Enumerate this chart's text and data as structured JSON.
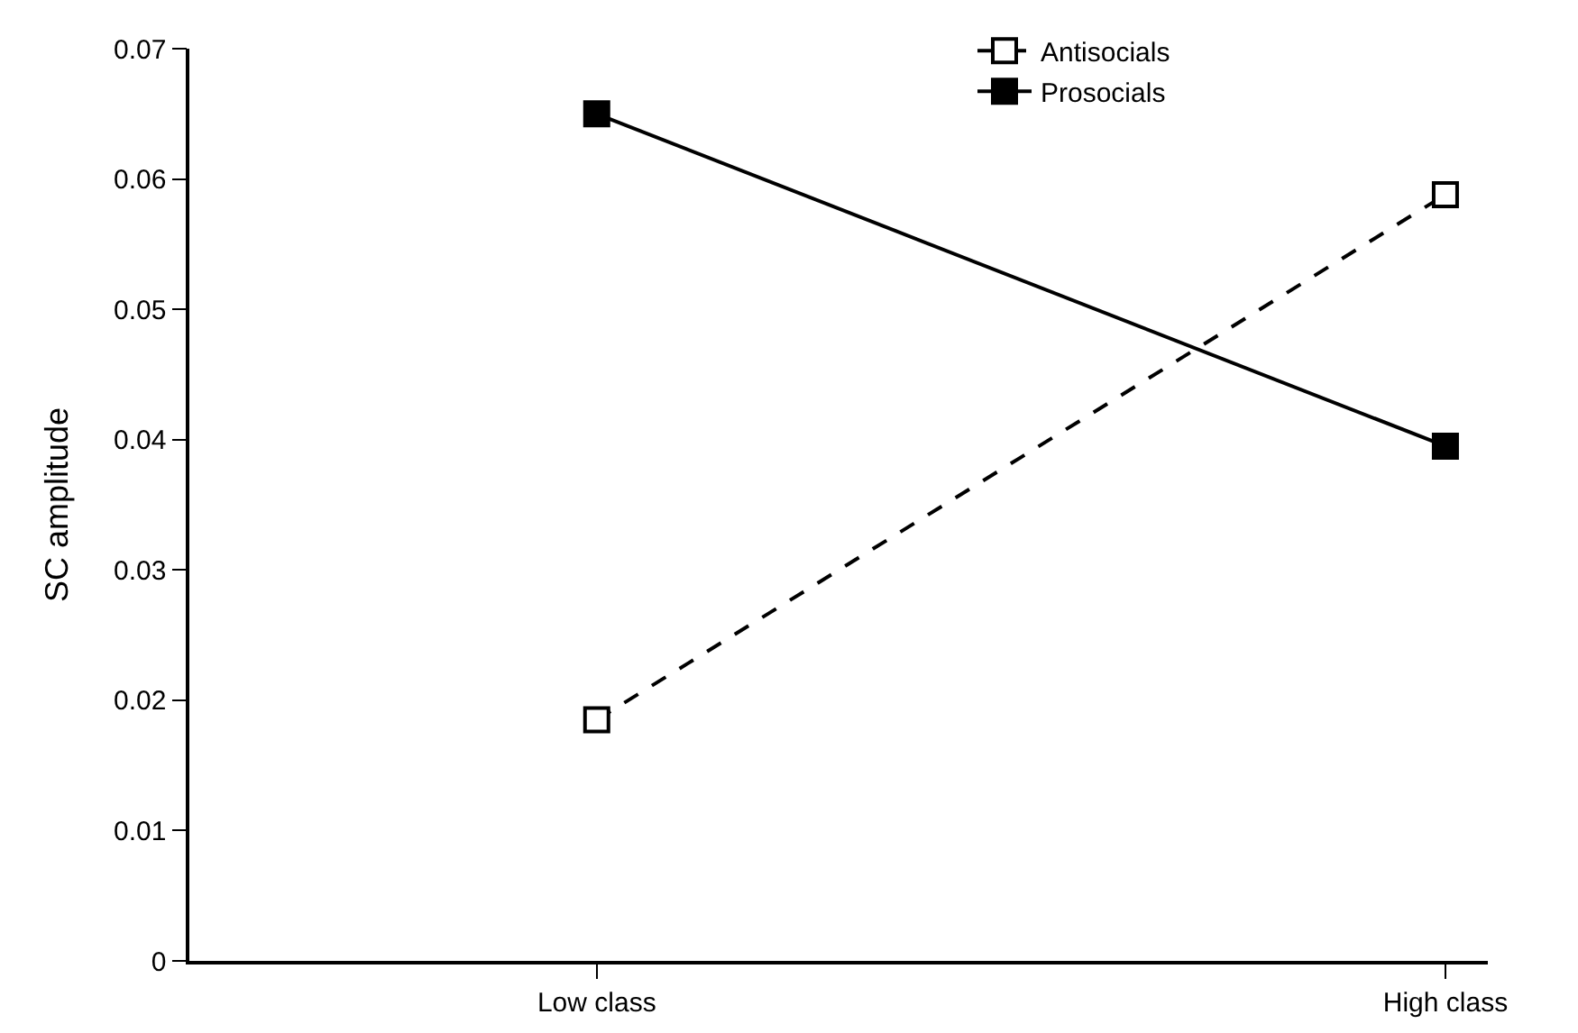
{
  "chart_data": {
    "type": "line",
    "ylabel": "SC amplitude",
    "categories": [
      "Low class",
      "High class"
    ],
    "series": [
      {
        "name": "Antisocials",
        "color": "#000000",
        "line_style": "dashed",
        "values": [
          0.0185,
          0.0588
        ]
      },
      {
        "name": "Prosocials",
        "color": "#000000",
        "line_style": "solid",
        "values": [
          0.065,
          0.0395
        ]
      }
    ],
    "ylim": [
      0,
      0.07
    ],
    "yticks": [
      {
        "value": 0,
        "label": "0"
      },
      0.01,
      0.02,
      0.03,
      0.04,
      0.05,
      0.06,
      0.07
    ],
    "grid": false,
    "legend": "top right",
    "marker": "square"
  }
}
